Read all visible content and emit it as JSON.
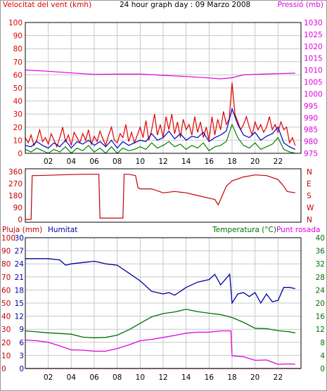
{
  "colors": {
    "wind": "#e00000",
    "gust": "#0000c0",
    "green": "#008000",
    "pressure": "#e000e0",
    "humidity": "#0000a0",
    "temperature": "#007000",
    "dewpoint": "#e000e0",
    "rain": "#c00000",
    "direction": "#c00000",
    "grid": "#c8c8c8",
    "frame": "#000000",
    "bg": "#ffffff"
  },
  "chart_data": [
    {
      "type": "line",
      "title": "24 hour graph day : 09 Marzo 2008",
      "ylabel": "Velocitat del vent (kmh)",
      "y2label": "Pressió (mb)",
      "xlim": [
        0,
        24
      ],
      "ylim": [
        0,
        100
      ],
      "y2lim": [
        975,
        1030
      ],
      "yticks": [
        0,
        10,
        20,
        30,
        40,
        50,
        60,
        70,
        80,
        90,
        100
      ],
      "y2ticks": [
        975,
        980,
        985,
        990,
        995,
        1000,
        1005,
        1010,
        1015,
        1020,
        1025,
        1030
      ],
      "xticks": [
        2,
        4,
        6,
        8,
        10,
        12,
        14,
        16,
        18,
        20,
        22
      ],
      "xticklabels": [
        "02",
        "04",
        "06",
        "08",
        "10",
        "12",
        "14",
        "16",
        "18",
        "20",
        "22"
      ],
      "grid": true,
      "series": [
        {
          "axis": "left",
          "color_key": "wind",
          "x": [
            0,
            0.25,
            0.5,
            0.75,
            1,
            1.25,
            1.5,
            1.75,
            2,
            2.25,
            2.5,
            2.75,
            3,
            3.25,
            3.5,
            3.75,
            4,
            4.25,
            4.5,
            4.75,
            5,
            5.25,
            5.5,
            5.75,
            6,
            6.25,
            6.5,
            6.75,
            7,
            7.25,
            7.5,
            7.75,
            8,
            8.25,
            8.5,
            8.75,
            9,
            9.25,
            9.5,
            9.75,
            10,
            10.25,
            10.5,
            10.75,
            11,
            11.25,
            11.5,
            11.75,
            12,
            12.25,
            12.5,
            12.75,
            13,
            13.25,
            13.5,
            13.75,
            14,
            14.25,
            14.5,
            14.75,
            15,
            15.25,
            15.5,
            15.75,
            16,
            16.25,
            16.5,
            16.75,
            17,
            17.25,
            17.5,
            17.75,
            18,
            18.25,
            18.5,
            18.75,
            19,
            19.25,
            19.5,
            19.75,
            20,
            20.25,
            20.5,
            20.75,
            21,
            21.25,
            21.5,
            21.75,
            22,
            22.25,
            22.5,
            22.75,
            23,
            23.25,
            23.5
          ],
          "values": [
            12,
            8,
            14,
            6,
            10,
            18,
            9,
            12,
            7,
            15,
            10,
            5,
            12,
            20,
            9,
            14,
            6,
            16,
            12,
            8,
            15,
            10,
            18,
            7,
            13,
            9,
            17,
            11,
            6,
            14,
            20,
            10,
            8,
            15,
            12,
            22,
            9,
            16,
            8,
            14,
            20,
            12,
            25,
            10,
            18,
            30,
            14,
            22,
            12,
            28,
            18,
            30,
            15,
            24,
            12,
            26,
            18,
            22,
            14,
            28,
            16,
            24,
            12,
            20,
            10,
            28,
            14,
            26,
            18,
            32,
            22,
            26,
            54,
            30,
            24,
            18,
            22,
            28,
            20,
            14,
            24,
            18,
            22,
            16,
            20,
            28,
            18,
            22,
            16,
            24,
            18,
            20,
            8,
            12,
            6
          ]
        },
        {
          "axis": "left",
          "color_key": "gust",
          "x": [
            0,
            0.5,
            1,
            1.5,
            2,
            2.5,
            3,
            3.5,
            4,
            4.5,
            5,
            5.5,
            6,
            6.5,
            7,
            7.5,
            8,
            8.5,
            9,
            9.5,
            10,
            10.5,
            11,
            11.5,
            12,
            12.5,
            13,
            13.5,
            14,
            14.5,
            15,
            15.5,
            16,
            16.5,
            17,
            17.5,
            18,
            18.5,
            19,
            19.5,
            20,
            20.5,
            21,
            21.5,
            22,
            22.5,
            23,
            23.5
          ],
          "values": [
            6,
            5,
            9,
            6,
            4,
            8,
            5,
            10,
            4,
            9,
            7,
            10,
            6,
            9,
            5,
            10,
            4,
            9,
            6,
            8,
            10,
            9,
            15,
            10,
            12,
            17,
            11,
            15,
            10,
            13,
            12,
            16,
            9,
            12,
            14,
            17,
            34,
            22,
            14,
            12,
            16,
            10,
            13,
            15,
            20,
            8,
            5,
            3
          ]
        },
        {
          "axis": "left",
          "color_key": "green",
          "x": [
            0,
            0.5,
            1,
            1.5,
            2,
            2.5,
            3,
            3.5,
            4,
            4.5,
            5,
            5.5,
            6,
            6.5,
            7,
            7.5,
            8,
            8.5,
            9,
            9.5,
            10,
            10.5,
            11,
            11.5,
            12,
            12.5,
            13,
            13.5,
            14,
            14.5,
            15,
            15.5,
            16,
            16.5,
            17,
            17.5,
            18,
            18.5,
            19,
            19.5,
            20,
            20.5,
            21,
            21.5,
            22,
            22.5,
            23,
            23.5
          ],
          "values": [
            3,
            1,
            4,
            2,
            0,
            3,
            1,
            5,
            0,
            4,
            2,
            6,
            1,
            4,
            0,
            5,
            0,
            4,
            2,
            3,
            5,
            3,
            8,
            4,
            6,
            9,
            5,
            7,
            3,
            6,
            4,
            8,
            2,
            5,
            6,
            9,
            22,
            12,
            6,
            4,
            8,
            3,
            5,
            7,
            12,
            3,
            1,
            0
          ]
        },
        {
          "axis": "right",
          "color_key": "pressure",
          "x": [
            0,
            2,
            4,
            6,
            8,
            10,
            12,
            14,
            16,
            17,
            18,
            19,
            20,
            22,
            23.5
          ],
          "values": [
            1010,
            1009.5,
            1008.8,
            1008.2,
            1008.3,
            1008.3,
            1007.8,
            1007.3,
            1006.7,
            1006.3,
            1006.8,
            1008,
            1008.2,
            1008.5,
            1008.7
          ]
        }
      ]
    },
    {
      "type": "line",
      "ylim": [
        0,
        360
      ],
      "yticks": [
        0,
        90,
        180,
        270,
        360
      ],
      "y2ticklabels": [
        "N",
        "W",
        "S",
        "E",
        "N"
      ],
      "xlim": [
        0,
        24
      ],
      "series": [
        {
          "color_key": "direction",
          "x": [
            0,
            0.5,
            0.6,
            1,
            3,
            5,
            6,
            6.4,
            6.5,
            8.5,
            8.6,
            9,
            9.6,
            9.8,
            10,
            11,
            12,
            13,
            14,
            15,
            16,
            16.5,
            16.8,
            17.5,
            18,
            19,
            20,
            21,
            22,
            22.5,
            22.8,
            23.5
          ],
          "values": [
            0,
            0,
            330,
            330,
            335,
            340,
            340,
            340,
            10,
            10,
            340,
            340,
            330,
            240,
            230,
            230,
            200,
            210,
            200,
            180,
            160,
            150,
            110,
            250,
            290,
            320,
            335,
            330,
            300,
            250,
            210,
            200
          ]
        }
      ]
    },
    {
      "type": "line",
      "xlim": [
        0,
        24
      ],
      "legend": [
        {
          "label": "Pluja (mm)",
          "color_key": "rain"
        },
        {
          "label": "Humitat",
          "color_key": "humidity"
        },
        {
          "label": "Temperatura (°C)",
          "color_key": "temperature"
        },
        {
          "label": "Punt rosada",
          "color_key": "dewpoint"
        }
      ],
      "y_rain_ticks": [
        0,
        10,
        20,
        30,
        40,
        50,
        60,
        70,
        80,
        90,
        100
      ],
      "y_hum_ticks": [
        0,
        3,
        6,
        9,
        12,
        15,
        18,
        21,
        24,
        27,
        30
      ],
      "y_temp_ticks": [
        0,
        4,
        8,
        12,
        16,
        20,
        24,
        28,
        32,
        36,
        40
      ],
      "xticks": [
        2,
        4,
        6,
        8,
        10,
        12,
        14,
        16,
        18,
        20,
        22
      ],
      "xticklabels": [
        "02",
        "04",
        "06",
        "08",
        "10",
        "12",
        "14",
        "16",
        "18",
        "20",
        "22"
      ],
      "grid": true,
      "series": [
        {
          "name": "Humitat",
          "axis": "hum",
          "color_key": "humidity",
          "x": [
            0,
            1,
            2,
            3,
            3.5,
            4,
            5,
            6,
            6.5,
            7,
            8,
            9,
            10,
            11,
            12,
            12.5,
            13,
            14,
            15,
            16,
            16.5,
            17,
            17.5,
            17.8,
            18,
            18.5,
            19,
            19.5,
            20,
            20.5,
            21,
            21.5,
            22,
            22.5,
            23,
            23.5
          ],
          "values": [
            84,
            84,
            84,
            83,
            79,
            80,
            81,
            82,
            81,
            80,
            79,
            73,
            67,
            59,
            57,
            58,
            56,
            62,
            66,
            68,
            72,
            64,
            69,
            72,
            50,
            57,
            58,
            55,
            58,
            50,
            57,
            51,
            52,
            62,
            62,
            61
          ]
        },
        {
          "name": "Temperatura",
          "axis": "temp",
          "color_key": "temperature",
          "x": [
            0,
            1,
            2,
            3,
            4,
            5,
            6,
            7,
            8,
            9,
            10,
            11,
            12,
            13,
            14,
            15,
            16,
            17,
            18,
            19,
            20,
            21,
            22,
            23,
            23.5
          ],
          "values": [
            11.5,
            11.2,
            10.9,
            10.7,
            10.5,
            9.6,
            9.4,
            9.5,
            10.2,
            11.8,
            13.8,
            15.8,
            16.8,
            17.3,
            18.1,
            17.4,
            16.9,
            16.5,
            15.6,
            14.1,
            12.3,
            12.2,
            11.6,
            11.2,
            10.9
          ]
        },
        {
          "name": "Punt rosada",
          "axis": "temp",
          "color_key": "dewpoint",
          "x": [
            0,
            1,
            2,
            3,
            4,
            5,
            6,
            7,
            8,
            9,
            10,
            11,
            12,
            13,
            14,
            15,
            16,
            17,
            17.9,
            18,
            19,
            20,
            21,
            22,
            23,
            23.5
          ],
          "values": [
            8.7,
            8.5,
            8.0,
            6.9,
            5.7,
            5.6,
            5.3,
            5.3,
            6.1,
            7.2,
            8.5,
            8.9,
            9.5,
            10.1,
            10.8,
            11.1,
            11.1,
            11.5,
            11.5,
            3.9,
            3.6,
            2.5,
            2.6,
            1.3,
            1.4,
            1.3
          ]
        },
        {
          "name": "Pluja (mm)",
          "axis": "rain",
          "color_key": "rain",
          "x": [
            0,
            24
          ],
          "values": [
            0,
            0
          ]
        }
      ]
    }
  ]
}
